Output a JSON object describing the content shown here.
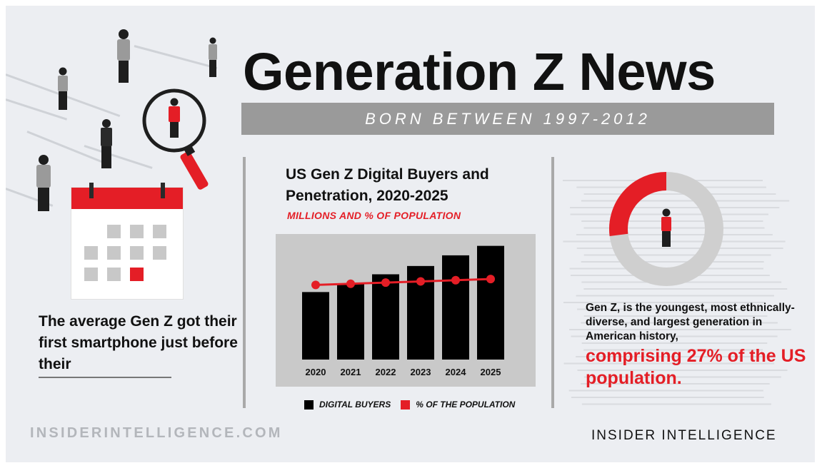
{
  "header": {
    "title": "Generation Z News",
    "subtitle": "BORN BETWEEN 1997-2012"
  },
  "left": {
    "text": "The average Gen Z got their first smartphone just before their"
  },
  "chart": {
    "title": "US Gen Z Digital Buyers and Penetration, 2020-2025",
    "subtitle": "MILLIONS AND % OF POPULATION",
    "legend_buyers": "DIGITAL BUYERS",
    "legend_pct": "% OF THE POPULATION"
  },
  "chart_data": {
    "type": "bar",
    "title": "US Gen Z Digital Buyers and Penetration, 2020-2025",
    "subtitle": "MILLIONS AND % OF POPULATION",
    "categories": [
      "2020",
      "2021",
      "2022",
      "2023",
      "2024",
      "2025"
    ],
    "series": [
      {
        "name": "DIGITAL BUYERS",
        "type": "bar",
        "values": [
          57,
          64,
          72,
          79,
          88,
          96
        ],
        "color": "#000000"
      },
      {
        "name": "% OF THE POPULATION",
        "type": "line",
        "values": [
          63,
          64,
          65,
          66,
          67,
          68
        ],
        "color": "#e41e26"
      }
    ],
    "ylim": [
      0,
      100
    ],
    "grid": false,
    "legend": "bottom"
  },
  "right": {
    "text": "Gen Z, is the youngest, most ethnically-diverse, and largest generation in American history,",
    "highlight": "comprising 27% of the US population.",
    "donut_share": 0.27
  },
  "footer": {
    "left": "INSIDERINTELLIGENCE.COM",
    "right": "INSIDER INTELLIGENCE"
  },
  "colors": {
    "accent": "#e41e26",
    "dark": "#111111",
    "gray": "#9a9a9a",
    "background": "#eceef2"
  }
}
